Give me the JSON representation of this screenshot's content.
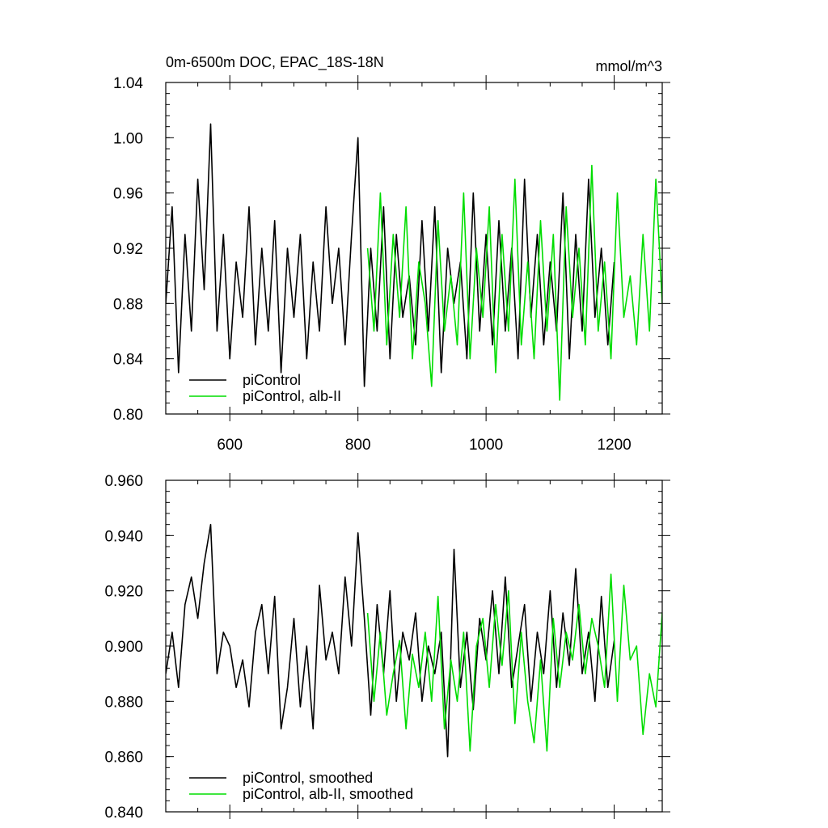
{
  "chart_data": [
    {
      "type": "line",
      "title": "0m-6500m DOC, EPAC_18S-18N",
      "units": "mmol/m^3",
      "xlim": [
        500,
        1275
      ],
      "ylim": [
        0.8,
        1.04
      ],
      "xticks": [
        600,
        800,
        1000,
        1200
      ],
      "xtick_labels": [
        "600",
        "800",
        "1000",
        "1200"
      ],
      "yticks": [
        0.8,
        0.84,
        0.88,
        0.92,
        0.96,
        1.0,
        1.04
      ],
      "ytick_labels": [
        "0.80",
        "0.84",
        "0.88",
        "0.92",
        "0.96",
        "1.00",
        "1.04"
      ],
      "legend_position": "bottom-left",
      "series": [
        {
          "name": "piControl",
          "color": "#000000",
          "x": [
            500,
            510,
            520,
            530,
            540,
            550,
            560,
            570,
            580,
            590,
            600,
            610,
            620,
            630,
            640,
            650,
            660,
            670,
            680,
            690,
            700,
            710,
            720,
            730,
            740,
            750,
            760,
            770,
            780,
            790,
            800,
            810,
            820,
            830,
            840,
            850,
            860,
            870,
            880,
            890,
            900,
            910,
            920,
            930,
            940,
            950,
            960,
            970,
            980,
            990,
            1000,
            1010,
            1020,
            1030,
            1040,
            1050,
            1060,
            1070,
            1080,
            1090,
            1100,
            1110,
            1120,
            1130,
            1140,
            1150,
            1160,
            1170,
            1180,
            1190,
            1200
          ],
          "y": [
            0.88,
            0.95,
            0.83,
            0.93,
            0.86,
            0.97,
            0.89,
            1.01,
            0.86,
            0.93,
            0.84,
            0.91,
            0.87,
            0.95,
            0.85,
            0.92,
            0.86,
            0.94,
            0.83,
            0.92,
            0.87,
            0.93,
            0.84,
            0.91,
            0.86,
            0.95,
            0.88,
            0.92,
            0.85,
            0.93,
            1.0,
            0.82,
            0.92,
            0.86,
            0.95,
            0.84,
            0.93,
            0.87,
            0.9,
            0.85,
            0.94,
            0.86,
            0.95,
            0.83,
            0.92,
            0.88,
            0.91,
            0.84,
            0.96,
            0.86,
            0.93,
            0.85,
            0.94,
            0.86,
            0.92,
            0.84,
            0.97,
            0.87,
            0.93,
            0.85,
            0.91,
            0.86,
            0.96,
            0.84,
            0.93,
            0.86,
            0.97,
            0.87,
            0.92,
            0.85,
            0.91
          ]
        },
        {
          "name": "piControl, alb-II",
          "color": "#00dd00",
          "x": [
            815,
            825,
            835,
            845,
            855,
            865,
            875,
            885,
            895,
            905,
            915,
            925,
            935,
            945,
            955,
            965,
            975,
            985,
            995,
            1005,
            1015,
            1025,
            1035,
            1045,
            1055,
            1065,
            1075,
            1085,
            1095,
            1105,
            1115,
            1125,
            1135,
            1145,
            1155,
            1165,
            1175,
            1185,
            1195,
            1205,
            1215,
            1225,
            1235,
            1245,
            1255,
            1265,
            1275
          ],
          "y": [
            0.92,
            0.86,
            0.96,
            0.85,
            0.93,
            0.87,
            0.95,
            0.84,
            0.91,
            0.88,
            0.82,
            0.94,
            0.86,
            0.9,
            0.85,
            0.96,
            0.84,
            0.92,
            0.87,
            0.95,
            0.83,
            0.93,
            0.86,
            0.97,
            0.85,
            0.91,
            0.84,
            0.94,
            0.86,
            0.93,
            0.81,
            0.95,
            0.87,
            0.92,
            0.85,
            0.98,
            0.86,
            0.91,
            0.84,
            0.96,
            0.87,
            0.9,
            0.85,
            0.93,
            0.86,
            0.97,
            0.88
          ]
        }
      ]
    },
    {
      "type": "line",
      "title": "",
      "xlim": [
        500,
        1275
      ],
      "ylim": [
        0.84,
        0.96
      ],
      "xticks": [
        600,
        800,
        1000,
        1200
      ],
      "yticks": [
        0.84,
        0.86,
        0.88,
        0.9,
        0.92,
        0.94,
        0.96
      ],
      "ytick_labels": [
        "0.840",
        "0.860",
        "0.880",
        "0.900",
        "0.920",
        "0.940",
        "0.960"
      ],
      "legend_position": "bottom-left",
      "series": [
        {
          "name": "piControl, smoothed",
          "color": "#000000",
          "x": [
            500,
            510,
            520,
            530,
            540,
            550,
            560,
            570,
            580,
            590,
            600,
            610,
            620,
            630,
            640,
            650,
            660,
            670,
            680,
            690,
            700,
            710,
            720,
            730,
            740,
            750,
            760,
            770,
            780,
            790,
            800,
            810,
            820,
            830,
            840,
            850,
            860,
            870,
            880,
            890,
            900,
            910,
            920,
            930,
            940,
            950,
            960,
            970,
            980,
            990,
            1000,
            1010,
            1020,
            1030,
            1040,
            1050,
            1060,
            1070,
            1080,
            1090,
            1100,
            1110,
            1120,
            1130,
            1140,
            1150,
            1160,
            1170,
            1180,
            1190,
            1200
          ],
          "y": [
            0.89,
            0.905,
            0.885,
            0.915,
            0.925,
            0.91,
            0.93,
            0.944,
            0.89,
            0.905,
            0.9,
            0.885,
            0.895,
            0.878,
            0.905,
            0.915,
            0.89,
            0.918,
            0.87,
            0.885,
            0.91,
            0.878,
            0.9,
            0.87,
            0.922,
            0.895,
            0.905,
            0.89,
            0.925,
            0.9,
            0.941,
            0.91,
            0.875,
            0.915,
            0.89,
            0.92,
            0.88,
            0.905,
            0.895,
            0.912,
            0.88,
            0.9,
            0.89,
            0.905,
            0.86,
            0.935,
            0.885,
            0.905,
            0.877,
            0.91,
            0.895,
            0.92,
            0.89,
            0.925,
            0.885,
            0.9,
            0.915,
            0.88,
            0.905,
            0.89,
            0.92,
            0.885,
            0.912,
            0.893,
            0.928,
            0.89,
            0.905,
            0.88,
            0.918,
            0.885,
            0.902
          ]
        },
        {
          "name": "piControl, alb-II, smoothed",
          "color": "#00dd00",
          "x": [
            815,
            825,
            835,
            845,
            855,
            865,
            875,
            885,
            895,
            905,
            915,
            925,
            935,
            945,
            955,
            965,
            975,
            985,
            995,
            1005,
            1015,
            1025,
            1035,
            1045,
            1055,
            1065,
            1075,
            1085,
            1095,
            1105,
            1115,
            1125,
            1135,
            1145,
            1155,
            1165,
            1175,
            1185,
            1195,
            1205,
            1215,
            1225,
            1235,
            1245,
            1255,
            1265,
            1275
          ],
          "y": [
            0.912,
            0.88,
            0.905,
            0.875,
            0.89,
            0.902,
            0.87,
            0.897,
            0.885,
            0.905,
            0.88,
            0.918,
            0.87,
            0.895,
            0.88,
            0.905,
            0.862,
            0.9,
            0.91,
            0.885,
            0.915,
            0.893,
            0.92,
            0.872,
            0.905,
            0.88,
            0.865,
            0.895,
            0.862,
            0.91,
            0.885,
            0.905,
            0.895,
            0.915,
            0.89,
            0.91,
            0.9,
            0.885,
            0.926,
            0.88,
            0.922,
            0.895,
            0.9,
            0.868,
            0.89,
            0.878,
            0.912
          ]
        }
      ]
    }
  ]
}
